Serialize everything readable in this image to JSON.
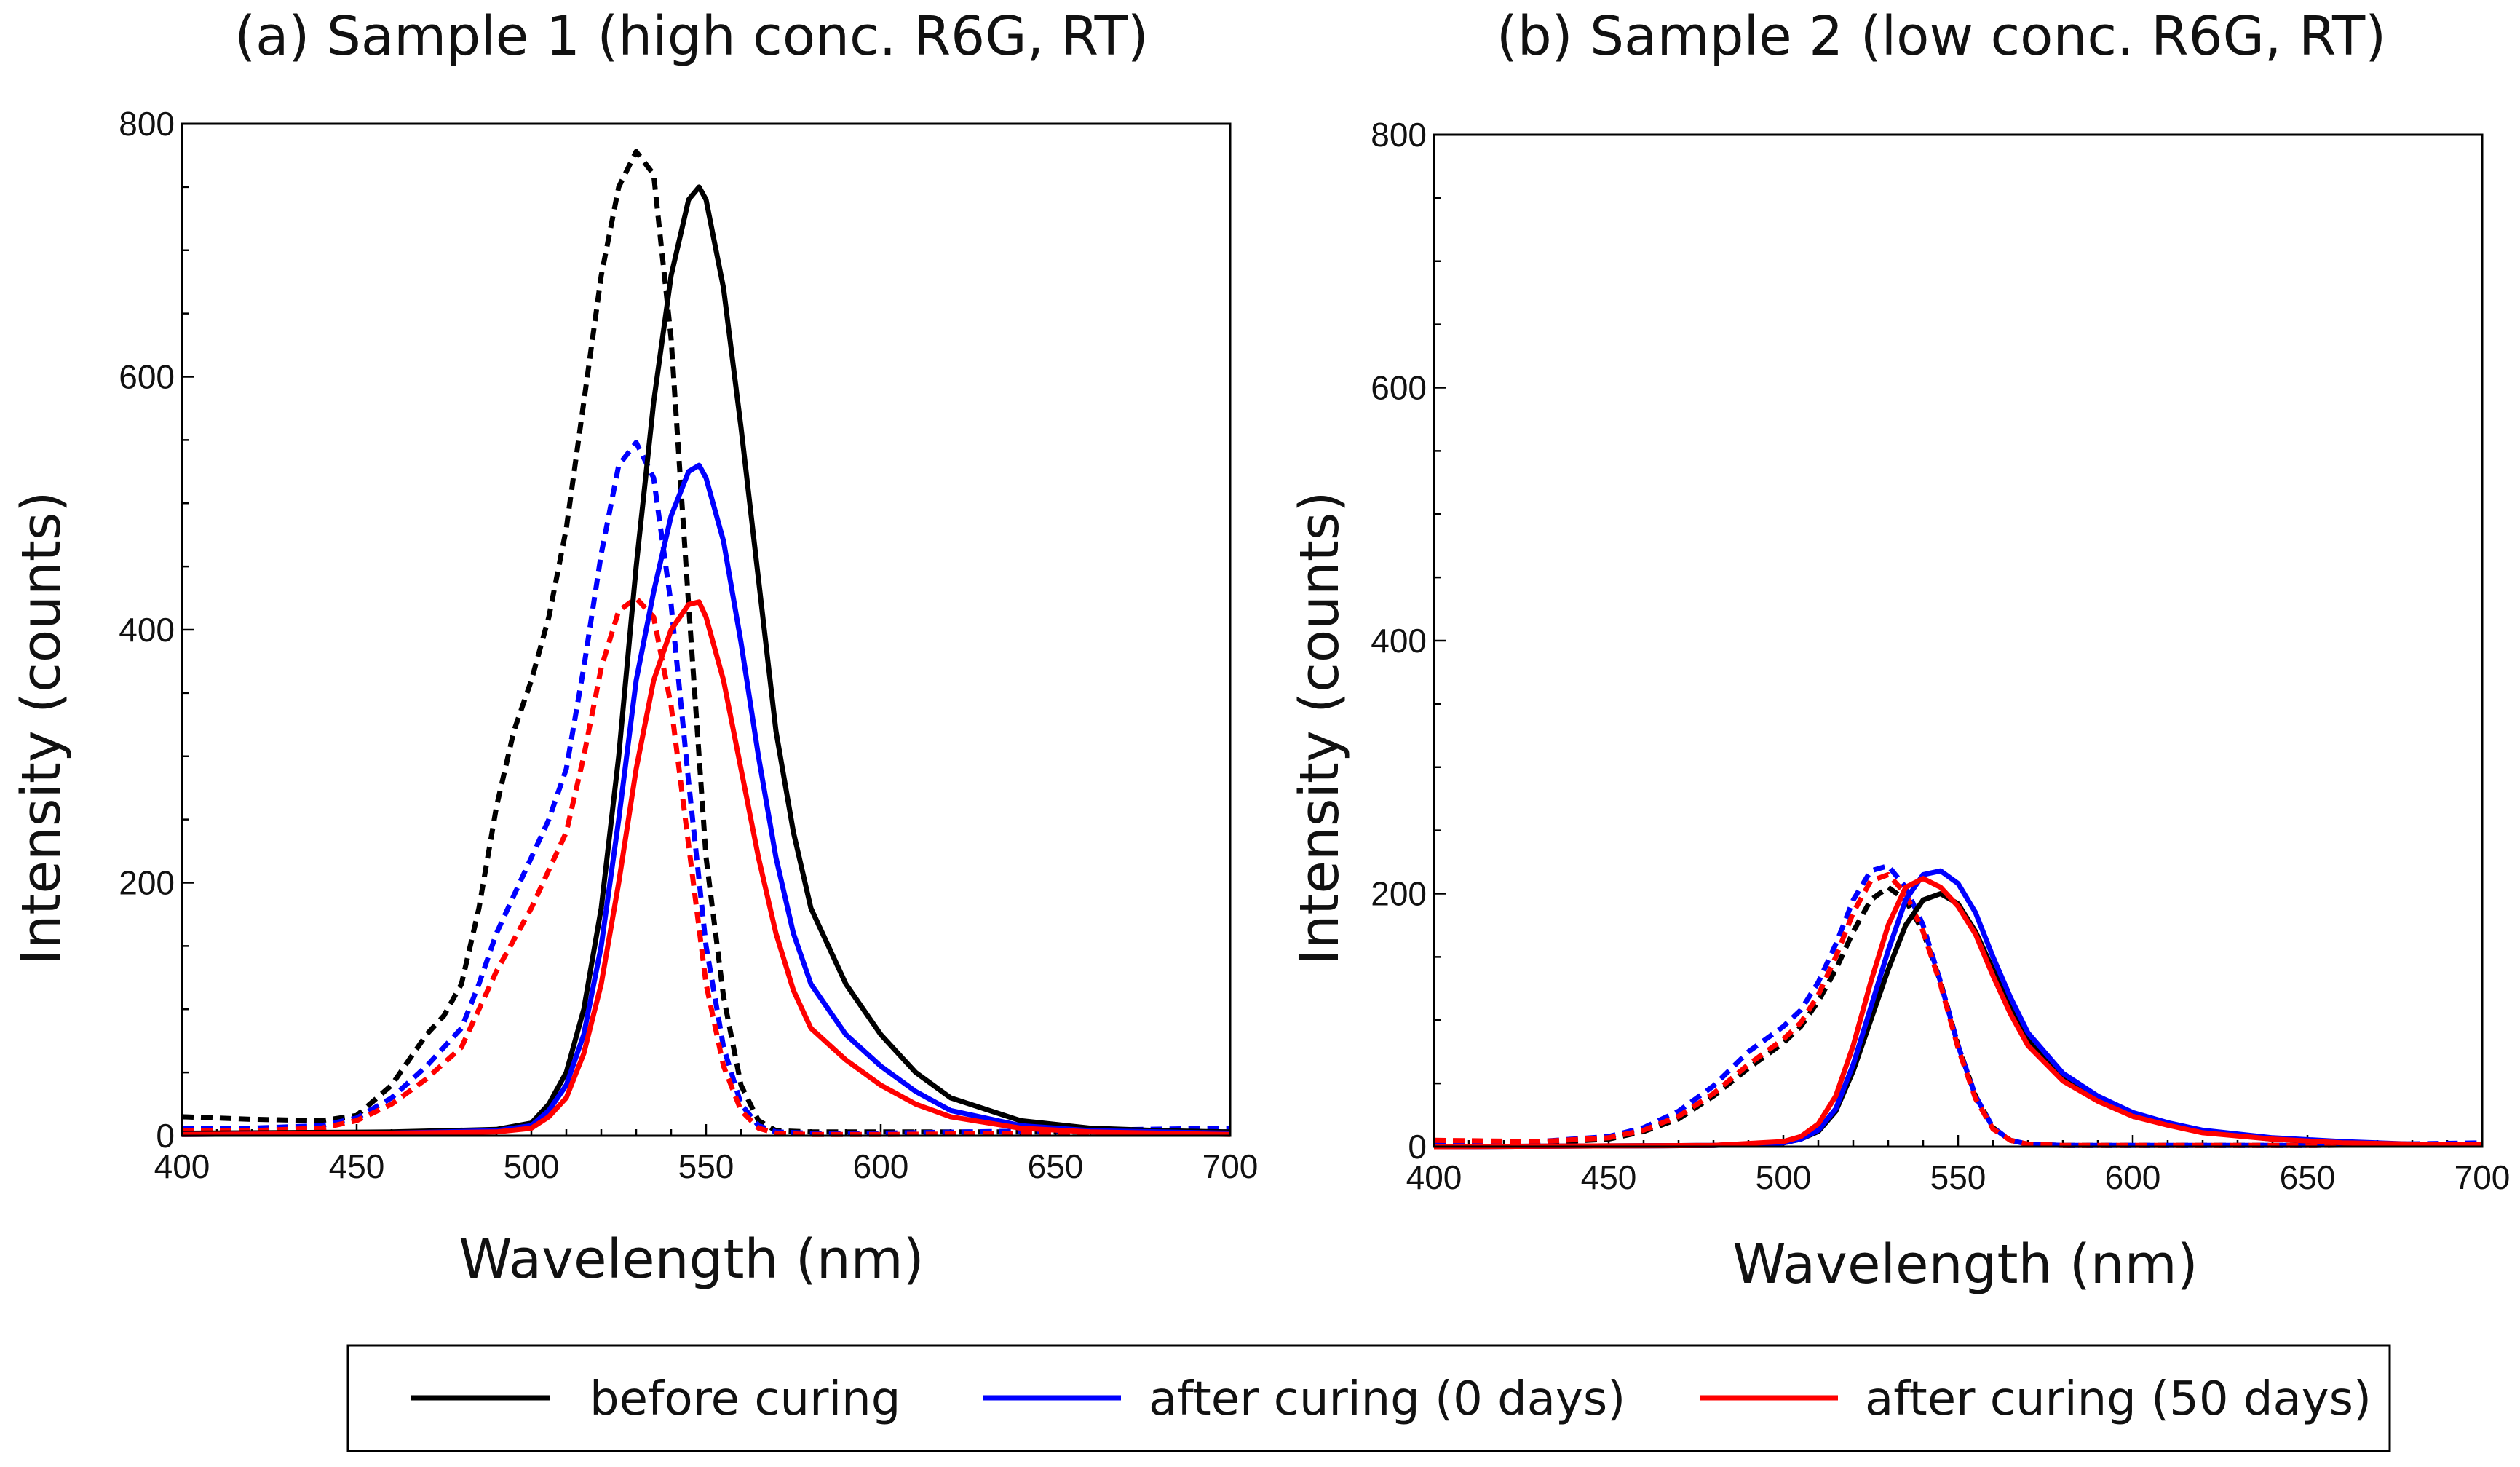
{
  "chart_data": [
    {
      "type": "line",
      "title": "(a) Sample 1 (high conc. R6G, RT)",
      "xlabel": "Wavelength (nm)",
      "ylabel": "Intensity (counts)",
      "xlim": [
        400,
        700
      ],
      "ylim": [
        0,
        800
      ],
      "xticks": [
        400,
        450,
        500,
        550,
        600,
        650,
        700
      ],
      "yticks": [
        0,
        200,
        400,
        600,
        800
      ],
      "series": [
        {
          "name": "before curing, dashed",
          "color": "#000000",
          "style": "dashed",
          "x": [
            400,
            420,
            440,
            450,
            460,
            470,
            475,
            480,
            485,
            490,
            495,
            500,
            505,
            510,
            515,
            520,
            525,
            530,
            535,
            540,
            545,
            550,
            555,
            560,
            565,
            570,
            580,
            600,
            650,
            700
          ],
          "y": [
            15,
            13,
            12,
            16,
            40,
            80,
            95,
            120,
            180,
            260,
            320,
            360,
            410,
            480,
            580,
            680,
            750,
            778,
            760,
            630,
            420,
            220,
            110,
            40,
            12,
            4,
            3,
            3,
            3,
            3
          ]
        },
        {
          "name": "after curing (0 days), dashed",
          "color": "#0000ff",
          "style": "dashed",
          "x": [
            400,
            420,
            440,
            450,
            460,
            470,
            480,
            485,
            490,
            495,
            500,
            505,
            510,
            515,
            520,
            525,
            530,
            535,
            540,
            545,
            550,
            555,
            560,
            565,
            570,
            580,
            600,
            650,
            700
          ],
          "y": [
            6,
            6,
            8,
            14,
            30,
            55,
            85,
            120,
            160,
            190,
            220,
            250,
            290,
            370,
            460,
            530,
            548,
            520,
            420,
            280,
            150,
            70,
            25,
            8,
            3,
            2,
            2,
            4,
            6
          ]
        },
        {
          "name": "after curing (50 days), dashed",
          "color": "#ff0000",
          "style": "dashed",
          "x": [
            400,
            420,
            440,
            450,
            460,
            470,
            480,
            485,
            490,
            495,
            500,
            505,
            510,
            515,
            520,
            525,
            530,
            535,
            540,
            545,
            550,
            555,
            560,
            565,
            570,
            580,
            600,
            650,
            700
          ],
          "y": [
            4,
            4,
            6,
            12,
            25,
            45,
            70,
            100,
            130,
            155,
            180,
            210,
            240,
            300,
            370,
            415,
            425,
            410,
            340,
            230,
            120,
            55,
            20,
            6,
            2,
            1,
            1,
            2,
            3
          ]
        },
        {
          "name": "before curing",
          "color": "#000000",
          "style": "solid",
          "x": [
            400,
            460,
            490,
            500,
            505,
            510,
            515,
            520,
            525,
            530,
            535,
            540,
            545,
            548,
            550,
            555,
            560,
            565,
            570,
            575,
            580,
            590,
            600,
            610,
            620,
            640,
            660,
            680,
            700
          ],
          "y": [
            2,
            3,
            5,
            10,
            25,
            50,
            100,
            180,
            300,
            450,
            580,
            680,
            740,
            750,
            740,
            670,
            560,
            440,
            320,
            240,
            180,
            120,
            80,
            50,
            30,
            12,
            6,
            4,
            3
          ]
        },
        {
          "name": "after curing (0 days)",
          "color": "#0000ff",
          "style": "solid",
          "x": [
            400,
            460,
            490,
            500,
            505,
            510,
            515,
            520,
            525,
            530,
            535,
            540,
            545,
            548,
            550,
            555,
            560,
            565,
            570,
            575,
            580,
            590,
            600,
            610,
            620,
            640,
            660,
            680,
            700
          ],
          "y": [
            1,
            2,
            4,
            8,
            20,
            40,
            80,
            150,
            250,
            360,
            430,
            490,
            525,
            530,
            520,
            470,
            390,
            300,
            220,
            160,
            120,
            80,
            55,
            35,
            20,
            8,
            4,
            3,
            2
          ]
        },
        {
          "name": "after curing (50 days)",
          "color": "#ff0000",
          "style": "solid",
          "x": [
            400,
            460,
            490,
            500,
            505,
            510,
            515,
            520,
            525,
            530,
            535,
            540,
            545,
            548,
            550,
            555,
            560,
            565,
            570,
            575,
            580,
            590,
            600,
            610,
            620,
            640,
            660,
            680,
            700
          ],
          "y": [
            1,
            2,
            3,
            6,
            15,
            30,
            65,
            120,
            200,
            290,
            360,
            400,
            420,
            422,
            410,
            360,
            290,
            220,
            160,
            115,
            85,
            60,
            40,
            25,
            15,
            6,
            3,
            2,
            1
          ]
        }
      ]
    },
    {
      "type": "line",
      "title": "(b) Sample 2 (low conc. R6G, RT)",
      "xlabel": "Wavelength (nm)",
      "ylabel": "Intensity (counts)",
      "xlim": [
        400,
        700
      ],
      "ylim": [
        0,
        800
      ],
      "xticks": [
        400,
        450,
        500,
        550,
        600,
        650,
        700
      ],
      "yticks": [
        0,
        200,
        400,
        600,
        800
      ],
      "series": [
        {
          "name": "before curing, dashed",
          "color": "#000000",
          "style": "dashed",
          "x": [
            400,
            430,
            450,
            460,
            470,
            480,
            490,
            495,
            500,
            505,
            510,
            515,
            520,
            525,
            530,
            535,
            540,
            545,
            550,
            555,
            560,
            565,
            570,
            580,
            600,
            650,
            700
          ],
          "y": [
            3,
            3,
            6,
            12,
            22,
            40,
            62,
            72,
            82,
            95,
            115,
            140,
            170,
            195,
            205,
            195,
            170,
            130,
            80,
            40,
            15,
            5,
            2,
            1,
            1,
            1,
            2
          ]
        },
        {
          "name": "after curing (0 days), dashed",
          "color": "#0000ff",
          "style": "dashed",
          "x": [
            400,
            430,
            450,
            460,
            470,
            480,
            490,
            495,
            500,
            505,
            510,
            515,
            520,
            525,
            530,
            535,
            540,
            545,
            550,
            555,
            560,
            565,
            570,
            580,
            600,
            650,
            700
          ],
          "y": [
            4,
            4,
            8,
            15,
            28,
            48,
            75,
            85,
            95,
            108,
            130,
            160,
            195,
            218,
            222,
            205,
            175,
            130,
            80,
            40,
            15,
            5,
            2,
            1,
            1,
            1,
            3
          ]
        },
        {
          "name": "after curing (50 days), dashed",
          "color": "#ff0000",
          "style": "dashed",
          "x": [
            400,
            430,
            450,
            460,
            470,
            480,
            490,
            495,
            500,
            505,
            510,
            515,
            520,
            525,
            530,
            535,
            540,
            545,
            550,
            555,
            560,
            565,
            570,
            580,
            600,
            650,
            700
          ],
          "y": [
            5,
            4,
            7,
            13,
            24,
            42,
            65,
            75,
            85,
            98,
            120,
            150,
            185,
            210,
            215,
            200,
            170,
            128,
            78,
            38,
            14,
            5,
            2,
            1,
            1,
            1,
            2
          ]
        },
        {
          "name": "before curing",
          "color": "#000000",
          "style": "solid",
          "x": [
            400,
            480,
            500,
            505,
            510,
            515,
            520,
            525,
            530,
            535,
            540,
            545,
            550,
            555,
            560,
            565,
            570,
            580,
            590,
            600,
            610,
            620,
            640,
            660,
            680,
            700
          ],
          "y": [
            0,
            1,
            3,
            6,
            12,
            28,
            60,
            100,
            140,
            175,
            195,
            200,
            192,
            170,
            140,
            110,
            85,
            55,
            38,
            25,
            18,
            12,
            6,
            3,
            2,
            2
          ]
        },
        {
          "name": "after curing (0 days)",
          "color": "#0000ff",
          "style": "solid",
          "x": [
            400,
            480,
            500,
            505,
            510,
            515,
            520,
            525,
            530,
            535,
            540,
            545,
            550,
            555,
            560,
            565,
            570,
            580,
            590,
            600,
            610,
            620,
            640,
            660,
            680,
            700
          ],
          "y": [
            0,
            1,
            3,
            6,
            13,
            30,
            65,
            110,
            155,
            195,
            215,
            218,
            208,
            185,
            150,
            118,
            90,
            58,
            40,
            27,
            19,
            13,
            7,
            4,
            2,
            2
          ]
        },
        {
          "name": "after curing (50 days)",
          "color": "#ff0000",
          "style": "solid",
          "x": [
            400,
            480,
            500,
            505,
            510,
            515,
            520,
            525,
            530,
            535,
            540,
            545,
            550,
            555,
            560,
            565,
            570,
            580,
            590,
            600,
            610,
            620,
            640,
            660,
            680,
            700
          ],
          "y": [
            0,
            1,
            4,
            8,
            18,
            40,
            80,
            130,
            175,
            205,
            212,
            205,
            190,
            168,
            135,
            105,
            80,
            52,
            36,
            24,
            17,
            11,
            6,
            3,
            2,
            2
          ]
        }
      ]
    }
  ],
  "legend": {
    "items": [
      {
        "label": "before curing",
        "color": "#000000"
      },
      {
        "label": "after curing (0 days)",
        "color": "#0000ff"
      },
      {
        "label": "after curing (50 days)",
        "color": "#ff0000"
      }
    ]
  }
}
